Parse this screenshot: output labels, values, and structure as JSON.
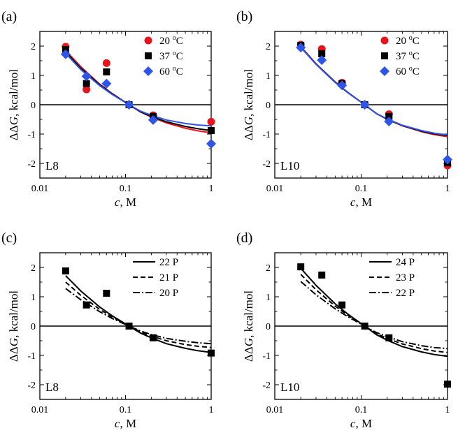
{
  "chart_data": [
    {
      "type": "scatter",
      "panel_label": "(a)",
      "inset_label": "L8",
      "xlabel_italic": "c",
      "xlabel_rest": ", M",
      "ylabel_prefix": "ΔΔ",
      "ylabel_italic": "G",
      "ylabel_rest": ", kcal/mol",
      "xscale": "log",
      "xlim": [
        0.01,
        1
      ],
      "ylim": [
        -2.5,
        2.5
      ],
      "x_ticks": [
        {
          "v": 0.01,
          "label": "0.01"
        },
        {
          "v": 0.1,
          "label": "0.1"
        },
        {
          "v": 1,
          "label": "1"
        }
      ],
      "y_ticks": [
        {
          "v": 2,
          "label": "2"
        },
        {
          "v": 1,
          "label": "1"
        },
        {
          "v": 0,
          "label": "0"
        },
        {
          "v": -1,
          "label": "-1"
        },
        {
          "v": -2,
          "label": "-2"
        }
      ],
      "zero_line": true,
      "legend_position": "top-right",
      "series": [
        {
          "name": "20 °C",
          "name_base": "20 ",
          "name_sup": "o",
          "name_unit": "C",
          "marker": "circle",
          "color": "#e8141c",
          "x": [
            0.02,
            0.035,
            0.06,
            0.11,
            0.21,
            1.0
          ],
          "y": [
            1.98,
            0.52,
            1.42,
            0.0,
            -0.36,
            -0.58
          ]
        },
        {
          "name": "37 °C",
          "name_base": "37 ",
          "name_sup": "o",
          "name_unit": "C",
          "marker": "square",
          "color": "#000000",
          "x": [
            0.02,
            0.035,
            0.06,
            0.11,
            0.21,
            1.0
          ],
          "y": [
            1.88,
            0.72,
            1.12,
            0.0,
            -0.4,
            -0.88
          ]
        },
        {
          "name": "60 °C",
          "name_base": "60 ",
          "name_sup": "o",
          "name_unit": "C",
          "marker": "diamond",
          "color": "#2f55e8",
          "x": [
            0.02,
            0.035,
            0.06,
            0.11,
            0.21,
            1.0
          ],
          "y": [
            1.72,
            0.97,
            0.72,
            0.0,
            -0.52,
            -1.33
          ]
        }
      ],
      "curves": [
        {
          "color": "#e8141c",
          "style": "solid",
          "x": [
            0.02,
            0.03,
            0.05,
            0.07,
            0.11,
            0.15,
            0.2,
            0.3,
            0.5,
            0.7,
            1.0
          ],
          "y": [
            1.85,
            1.3,
            0.7,
            0.38,
            0.0,
            -0.25,
            -0.42,
            -0.62,
            -0.8,
            -0.89,
            -0.96
          ]
        },
        {
          "color": "#000000",
          "style": "solid",
          "x": [
            0.02,
            0.03,
            0.05,
            0.07,
            0.11,
            0.15,
            0.2,
            0.3,
            0.5,
            0.7,
            1.0
          ],
          "y": [
            1.8,
            1.25,
            0.68,
            0.37,
            0.0,
            -0.24,
            -0.4,
            -0.58,
            -0.74,
            -0.82,
            -0.88
          ]
        },
        {
          "color": "#2f55e8",
          "style": "solid",
          "x": [
            0.02,
            0.03,
            0.05,
            0.07,
            0.11,
            0.15,
            0.2,
            0.3,
            0.5,
            0.7,
            1.0
          ],
          "y": [
            1.75,
            1.2,
            0.65,
            0.35,
            0.0,
            -0.22,
            -0.36,
            -0.52,
            -0.64,
            -0.69,
            -0.72
          ]
        }
      ]
    },
    {
      "type": "scatter",
      "panel_label": "(b)",
      "inset_label": "L10",
      "xlabel_italic": "c",
      "xlabel_rest": ", M",
      "ylabel_prefix": "ΔΔ",
      "ylabel_italic": "G",
      "ylabel_rest": ", kcal/mol",
      "xscale": "log",
      "xlim": [
        0.01,
        1
      ],
      "ylim": [
        -2.5,
        2.5
      ],
      "x_ticks": [
        {
          "v": 0.01,
          "label": "0.01"
        },
        {
          "v": 0.1,
          "label": "0.1"
        },
        {
          "v": 1,
          "label": "1"
        }
      ],
      "y_ticks": [
        {
          "v": 2,
          "label": "2"
        },
        {
          "v": 1,
          "label": "1"
        },
        {
          "v": 0,
          "label": "0"
        },
        {
          "v": -1,
          "label": "-1"
        },
        {
          "v": -2,
          "label": "-2"
        }
      ],
      "zero_line": true,
      "legend_position": "top-right",
      "series": [
        {
          "name": "20 °C",
          "name_base": "20 ",
          "name_sup": "o",
          "name_unit": "C",
          "marker": "circle",
          "color": "#e8141c",
          "x": [
            0.02,
            0.035,
            0.06,
            0.11,
            0.21,
            1.0
          ],
          "y": [
            2.05,
            1.9,
            0.75,
            0.0,
            -0.32,
            -2.07
          ]
        },
        {
          "name": "37 °C",
          "name_base": "37 ",
          "name_sup": "o",
          "name_unit": "C",
          "marker": "square",
          "color": "#000000",
          "x": [
            0.02,
            0.035,
            0.06,
            0.11,
            0.21,
            1.0
          ],
          "y": [
            2.02,
            1.74,
            0.72,
            0.0,
            -0.4,
            -1.98
          ]
        },
        {
          "name": "60 °C",
          "name_base": "60 ",
          "name_sup": "o",
          "name_unit": "C",
          "marker": "diamond",
          "color": "#2f55e8",
          "x": [
            0.02,
            0.035,
            0.06,
            0.11,
            0.21,
            1.0
          ],
          "y": [
            1.95,
            1.52,
            0.66,
            0.0,
            -0.57,
            -1.87
          ]
        }
      ],
      "curves": [
        {
          "color": "#e8141c",
          "style": "solid",
          "x": [
            0.02,
            0.03,
            0.05,
            0.07,
            0.11,
            0.15,
            0.2,
            0.3,
            0.5,
            0.7,
            1.0
          ],
          "y": [
            1.98,
            1.4,
            0.78,
            0.42,
            0.0,
            -0.3,
            -0.5,
            -0.72,
            -0.92,
            -1.02,
            -1.09
          ]
        },
        {
          "color": "#000000",
          "style": "solid",
          "x": [
            0.02,
            0.03,
            0.05,
            0.07,
            0.11,
            0.15,
            0.2,
            0.3,
            0.5,
            0.7,
            1.0
          ],
          "y": [
            1.96,
            1.39,
            0.77,
            0.42,
            0.0,
            -0.3,
            -0.49,
            -0.71,
            -0.9,
            -0.99,
            -1.05
          ]
        },
        {
          "color": "#2f55e8",
          "style": "solid",
          "x": [
            0.02,
            0.03,
            0.05,
            0.07,
            0.11,
            0.15,
            0.2,
            0.3,
            0.5,
            0.7,
            1.0
          ],
          "y": [
            1.95,
            1.38,
            0.76,
            0.41,
            0.0,
            -0.3,
            -0.48,
            -0.7,
            -0.88,
            -0.97,
            -1.03
          ]
        }
      ]
    },
    {
      "type": "scatter",
      "panel_label": "(c)",
      "inset_label": "L8",
      "xlabel_italic": "c",
      "xlabel_rest": ", M",
      "ylabel_prefix": "ΔΔ",
      "ylabel_italic": "G",
      "ylabel_rest": ", kcal/mol",
      "xscale": "log",
      "xlim": [
        0.01,
        1
      ],
      "ylim": [
        -2.5,
        2.5
      ],
      "x_ticks": [
        {
          "v": 0.01,
          "label": "0.01"
        },
        {
          "v": 0.1,
          "label": "0.1"
        },
        {
          "v": 1,
          "label": "1"
        }
      ],
      "y_ticks": [
        {
          "v": 2,
          "label": "2"
        },
        {
          "v": 1,
          "label": "1"
        },
        {
          "v": 0,
          "label": "0"
        },
        {
          "v": -1,
          "label": "-1"
        },
        {
          "v": -2,
          "label": "-2"
        }
      ],
      "zero_line": true,
      "legend_position": "top-right",
      "series": [
        {
          "name": "data",
          "marker": "square",
          "color": "#000000",
          "in_legend": false,
          "x": [
            0.02,
            0.035,
            0.06,
            0.11,
            0.21,
            1.0
          ],
          "y": [
            1.88,
            0.72,
            1.12,
            0.0,
            -0.4,
            -0.92
          ]
        }
      ],
      "curves": [
        {
          "name": "22 P",
          "color": "#000000",
          "style": "solid",
          "x": [
            0.02,
            0.03,
            0.05,
            0.07,
            0.11,
            0.15,
            0.2,
            0.3,
            0.5,
            0.7,
            1.0
          ],
          "y": [
            1.72,
            1.2,
            0.65,
            0.35,
            0.0,
            -0.24,
            -0.4,
            -0.6,
            -0.76,
            -0.84,
            -0.9
          ]
        },
        {
          "name": "21 P",
          "color": "#000000",
          "style": "dash",
          "x": [
            0.02,
            0.03,
            0.05,
            0.07,
            0.11,
            0.15,
            0.2,
            0.3,
            0.5,
            0.7,
            1.0
          ],
          "y": [
            1.5,
            1.05,
            0.57,
            0.31,
            0.0,
            -0.2,
            -0.34,
            -0.5,
            -0.63,
            -0.69,
            -0.73
          ]
        },
        {
          "name": "20 P",
          "color": "#000000",
          "style": "dashdot",
          "x": [
            0.02,
            0.03,
            0.05,
            0.07,
            0.11,
            0.15,
            0.2,
            0.3,
            0.5,
            0.7,
            1.0
          ],
          "y": [
            1.28,
            0.9,
            0.49,
            0.26,
            0.0,
            -0.17,
            -0.29,
            -0.42,
            -0.52,
            -0.57,
            -0.6
          ]
        }
      ]
    },
    {
      "type": "scatter",
      "panel_label": "(d)",
      "inset_label": "L10",
      "xlabel_italic": "c",
      "xlabel_rest": ", M",
      "ylabel_prefix": "ΔΔ",
      "ylabel_italic": "G",
      "ylabel_rest": ", kcal/mol",
      "xscale": "log",
      "xlim": [
        0.01,
        1
      ],
      "ylim": [
        -2.5,
        2.5
      ],
      "x_ticks": [
        {
          "v": 0.01,
          "label": "0.01"
        },
        {
          "v": 0.1,
          "label": "0.1"
        },
        {
          "v": 1,
          "label": "1"
        }
      ],
      "y_ticks": [
        {
          "v": 2,
          "label": "2"
        },
        {
          "v": 1,
          "label": "1"
        },
        {
          "v": 0,
          "label": "0"
        },
        {
          "v": -1,
          "label": "-1"
        },
        {
          "v": -2,
          "label": "-2"
        }
      ],
      "zero_line": true,
      "legend_position": "top-right",
      "series": [
        {
          "name": "data",
          "marker": "square",
          "color": "#000000",
          "in_legend": false,
          "x": [
            0.02,
            0.035,
            0.06,
            0.11,
            0.21,
            1.0
          ],
          "y": [
            2.02,
            1.74,
            0.72,
            0.0,
            -0.4,
            -1.98
          ]
        }
      ],
      "curves": [
        {
          "name": "24 P",
          "color": "#000000",
          "style": "solid",
          "x": [
            0.02,
            0.03,
            0.05,
            0.07,
            0.11,
            0.15,
            0.2,
            0.3,
            0.5,
            0.7,
            1.0
          ],
          "y": [
            1.97,
            1.39,
            0.76,
            0.41,
            0.0,
            -0.29,
            -0.48,
            -0.7,
            -0.88,
            -0.97,
            -1.03
          ]
        },
        {
          "name": "23 P",
          "color": "#000000",
          "style": "dash",
          "x": [
            0.02,
            0.03,
            0.05,
            0.07,
            0.11,
            0.15,
            0.2,
            0.3,
            0.5,
            0.7,
            1.0
          ],
          "y": [
            1.76,
            1.24,
            0.68,
            0.37,
            0.0,
            -0.26,
            -0.42,
            -0.61,
            -0.77,
            -0.85,
            -0.9
          ]
        },
        {
          "name": "22 P",
          "color": "#000000",
          "style": "dashdot",
          "x": [
            0.02,
            0.03,
            0.05,
            0.07,
            0.11,
            0.15,
            0.2,
            0.3,
            0.5,
            0.7,
            1.0
          ],
          "y": [
            1.52,
            1.07,
            0.59,
            0.32,
            0.0,
            -0.22,
            -0.36,
            -0.53,
            -0.67,
            -0.73,
            -0.77
          ]
        }
      ]
    }
  ]
}
